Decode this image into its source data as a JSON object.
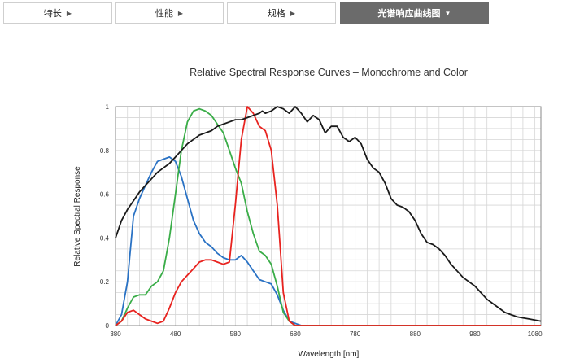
{
  "tabs": [
    {
      "label": "特长",
      "arrow": "▶",
      "active": false
    },
    {
      "label": "性能",
      "arrow": "▶",
      "active": false
    },
    {
      "label": "规格",
      "arrow": "▶",
      "active": false
    },
    {
      "label": "光谱响应曲线图",
      "arrow": "▼",
      "active": true
    }
  ],
  "chart_data": {
    "type": "line",
    "title": "Relative Spectral Response Curves – Monochrome and Color",
    "xlabel": "Wavelength [nm]",
    "ylabel": "Relative Spectral Response",
    "xlim": [
      380,
      1090
    ],
    "ylim": [
      0,
      1
    ],
    "xticks": [
      380,
      480,
      580,
      680,
      780,
      880,
      980,
      1080
    ],
    "yticks": [
      0,
      0.2,
      0.4,
      0.6,
      0.8,
      1
    ],
    "ytick_labels": [
      "0",
      "0.2",
      "0.4",
      "0.6",
      "0.8",
      "1"
    ],
    "grid": true,
    "colors": {
      "mono": "#1a1a1a",
      "red": "#e8231f",
      "green": "#3aad48",
      "blue": "#2a72c4"
    },
    "series": [
      {
        "key": "mono",
        "color": "#1a1a1a",
        "x": [
          380,
          390,
          400,
          410,
          420,
          430,
          440,
          450,
          460,
          470,
          480,
          490,
          500,
          510,
          520,
          530,
          540,
          550,
          560,
          570,
          580,
          590,
          600,
          610,
          620,
          625,
          630,
          640,
          650,
          660,
          670,
          680,
          690,
          700,
          710,
          720,
          730,
          740,
          750,
          760,
          770,
          780,
          790,
          800,
          810,
          820,
          830,
          840,
          850,
          860,
          870,
          880,
          890,
          900,
          910,
          920,
          930,
          940,
          950,
          960,
          970,
          980,
          990,
          1000,
          1010,
          1020,
          1030,
          1040,
          1050,
          1060,
          1070,
          1080,
          1090
        ],
        "y": [
          0.4,
          0.48,
          0.53,
          0.57,
          0.61,
          0.64,
          0.67,
          0.7,
          0.72,
          0.74,
          0.77,
          0.8,
          0.83,
          0.85,
          0.87,
          0.88,
          0.89,
          0.91,
          0.92,
          0.93,
          0.94,
          0.94,
          0.95,
          0.96,
          0.97,
          0.98,
          0.97,
          0.98,
          1.0,
          0.99,
          0.97,
          1.0,
          0.97,
          0.93,
          0.96,
          0.94,
          0.88,
          0.91,
          0.91,
          0.86,
          0.84,
          0.86,
          0.83,
          0.76,
          0.72,
          0.7,
          0.65,
          0.58,
          0.55,
          0.54,
          0.52,
          0.48,
          0.42,
          0.38,
          0.37,
          0.35,
          0.32,
          0.28,
          0.25,
          0.22,
          0.2,
          0.18,
          0.15,
          0.12,
          0.1,
          0.08,
          0.06,
          0.05,
          0.04,
          0.035,
          0.03,
          0.025,
          0.02
        ]
      },
      {
        "key": "red",
        "color": "#e8231f",
        "x": [
          380,
          390,
          400,
          410,
          420,
          430,
          440,
          450,
          460,
          470,
          480,
          490,
          500,
          510,
          520,
          530,
          540,
          550,
          560,
          570,
          580,
          590,
          600,
          610,
          620,
          630,
          640,
          650,
          660,
          670,
          680,
          700,
          800,
          900,
          1000,
          1090
        ],
        "y": [
          0.0,
          0.02,
          0.06,
          0.07,
          0.05,
          0.03,
          0.02,
          0.01,
          0.02,
          0.08,
          0.15,
          0.2,
          0.23,
          0.26,
          0.29,
          0.3,
          0.3,
          0.29,
          0.28,
          0.29,
          0.55,
          0.85,
          1.0,
          0.97,
          0.91,
          0.89,
          0.8,
          0.55,
          0.15,
          0.02,
          0.0,
          0.0,
          0.0,
          0.0,
          0.0,
          0.0
        ]
      },
      {
        "key": "green",
        "color": "#3aad48",
        "x": [
          380,
          390,
          400,
          410,
          420,
          430,
          440,
          450,
          460,
          470,
          480,
          490,
          500,
          510,
          520,
          530,
          540,
          550,
          560,
          570,
          580,
          590,
          600,
          610,
          620,
          630,
          640,
          650,
          660,
          670,
          680,
          700,
          800,
          900,
          1000,
          1090
        ],
        "y": [
          0.0,
          0.02,
          0.08,
          0.13,
          0.14,
          0.14,
          0.18,
          0.2,
          0.25,
          0.4,
          0.6,
          0.8,
          0.93,
          0.98,
          0.99,
          0.98,
          0.96,
          0.92,
          0.88,
          0.8,
          0.72,
          0.65,
          0.52,
          0.42,
          0.34,
          0.32,
          0.28,
          0.18,
          0.06,
          0.02,
          0.0,
          0.0,
          0.0,
          0.0,
          0.0,
          0.0
        ]
      },
      {
        "key": "blue",
        "color": "#2a72c4",
        "x": [
          380,
          390,
          400,
          410,
          420,
          430,
          440,
          450,
          460,
          470,
          480,
          490,
          500,
          510,
          520,
          530,
          540,
          550,
          560,
          570,
          580,
          590,
          600,
          610,
          620,
          630,
          640,
          650,
          660,
          670,
          680,
          690,
          800,
          900,
          1000,
          1090
        ],
        "y": [
          0.0,
          0.05,
          0.2,
          0.5,
          0.58,
          0.64,
          0.7,
          0.75,
          0.76,
          0.77,
          0.75,
          0.68,
          0.58,
          0.48,
          0.42,
          0.38,
          0.36,
          0.33,
          0.31,
          0.3,
          0.3,
          0.32,
          0.29,
          0.25,
          0.21,
          0.2,
          0.19,
          0.14,
          0.07,
          0.02,
          0.01,
          0.0,
          0.0,
          0.0,
          0.0,
          0.0
        ]
      }
    ]
  }
}
